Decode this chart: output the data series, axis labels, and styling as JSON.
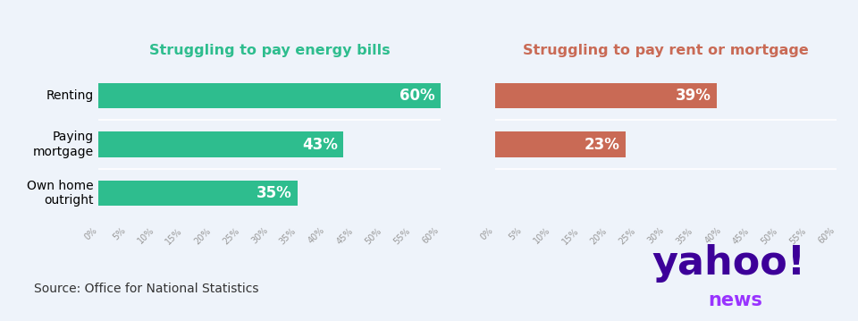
{
  "chart1_title": "Struggling to pay energy bills",
  "chart2_title": "Struggling to pay rent or mortgage",
  "categories": [
    "Renting",
    "Paying\nmortgage",
    "Own home\noutright"
  ],
  "energy_values": [
    60,
    43,
    35
  ],
  "rent_values": [
    39,
    23
  ],
  "energy_color": "#2EBD8E",
  "rent_color": "#C96A55",
  "energy_title_color": "#2EBD8E",
  "rent_title_color": "#C96A55",
  "bar_text_color": "#ffffff",
  "xlim": 60,
  "xticks": [
    0,
    5,
    10,
    15,
    20,
    25,
    30,
    35,
    40,
    45,
    50,
    55,
    60
  ],
  "xtick_labels": [
    "0%",
    "5%",
    "10%",
    "15%",
    "20%",
    "25%",
    "30%",
    "35%",
    "40%",
    "45%",
    "50%",
    "55%",
    "60%"
  ],
  "background_color": "#EEF3FA",
  "source_text": "Source: Office for National Statistics",
  "title_fontsize": 11.5,
  "label_fontsize": 10,
  "bar_label_fontsize": 12,
  "source_fontsize": 10,
  "yahoo_color": "#3D0099",
  "news_color": "#9933FF"
}
